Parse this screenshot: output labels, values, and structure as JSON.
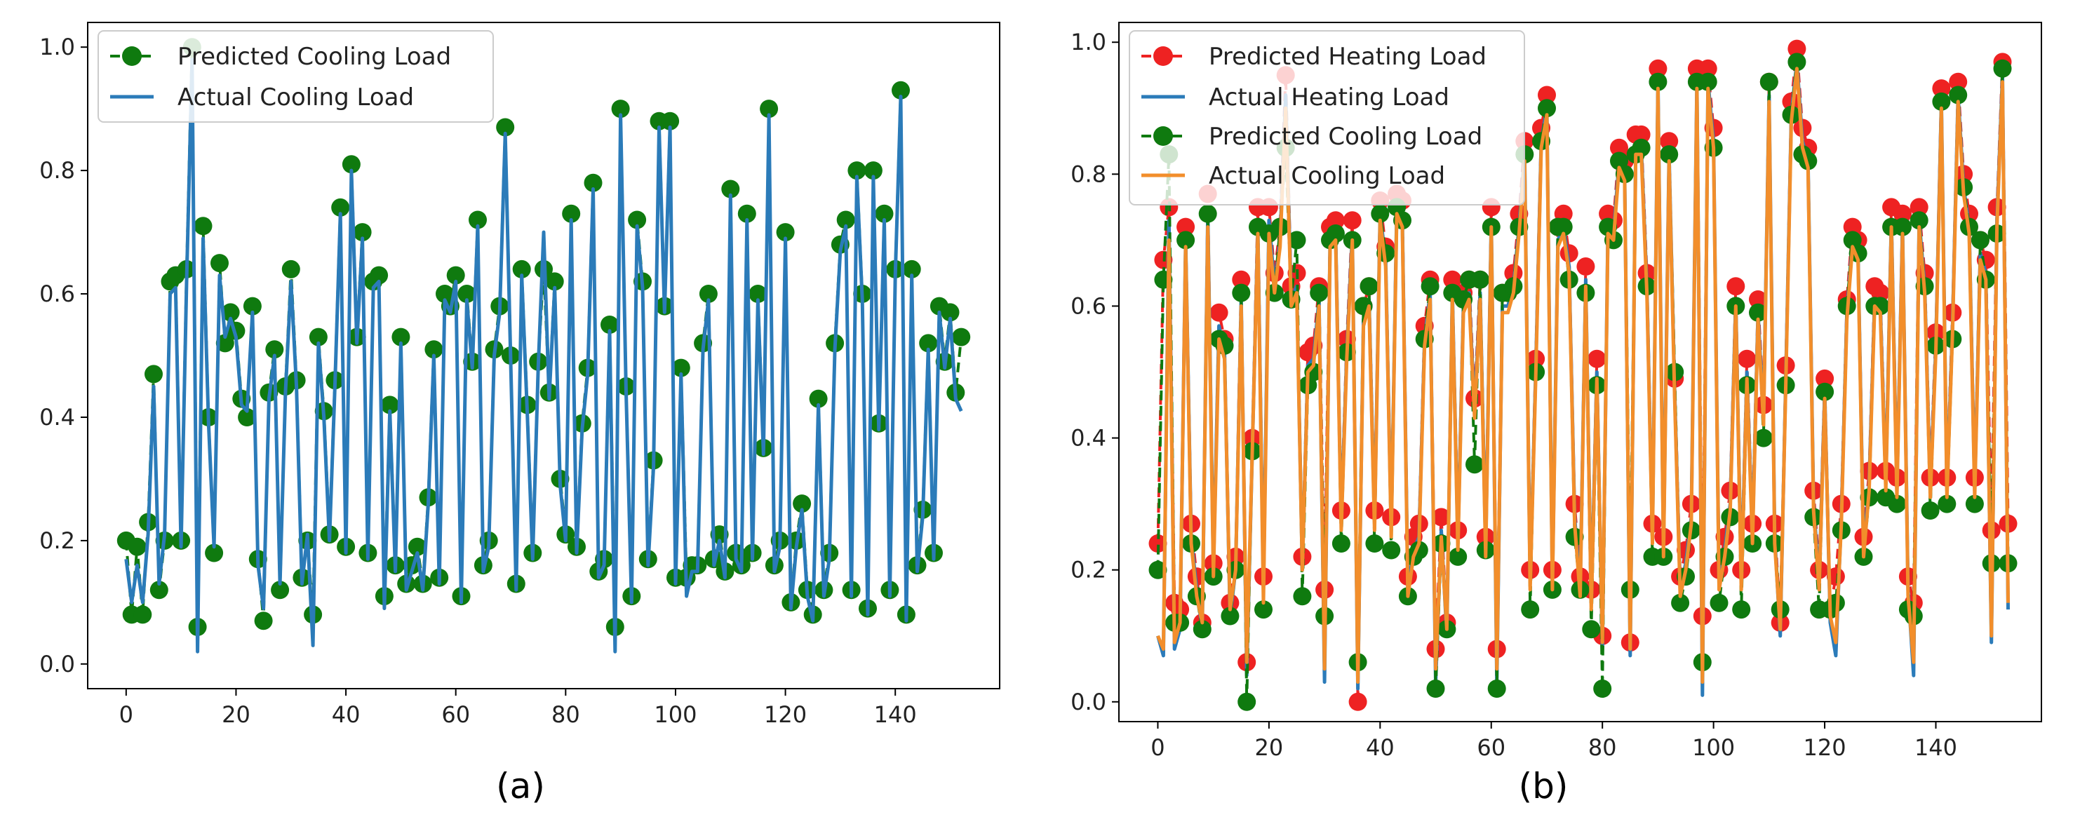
{
  "chart_data": [
    {
      "id": "a",
      "type": "line",
      "caption": "(a)",
      "xlim": [
        -7,
        159
      ],
      "ylim": [
        -0.04,
        1.04
      ],
      "xticks": [
        "0",
        "20",
        "40",
        "60",
        "80",
        "100",
        "120",
        "140"
      ],
      "xtick_values": [
        0,
        20,
        40,
        60,
        80,
        100,
        120,
        140
      ],
      "yticks": [
        "0.0",
        "0.2",
        "0.4",
        "0.6",
        "0.8",
        "1.0"
      ],
      "ytick_values": [
        0,
        0.2,
        0.4,
        0.6,
        0.8,
        1.0
      ],
      "legend": {
        "placement": "upper-left",
        "labels": [
          "Predicted Cooling Load",
          "Actual Cooling Load"
        ]
      },
      "series": [
        {
          "name": "Predicted Cooling Load",
          "style": "markers-dashed",
          "color": "#0f7a0f",
          "values": [
            0.2,
            0.08,
            0.19,
            0.08,
            0.23,
            0.47,
            0.12,
            0.2,
            0.62,
            0.63,
            0.2,
            0.64,
            1.0,
            0.06,
            0.71,
            0.4,
            0.18,
            0.65,
            0.52,
            0.57,
            0.54,
            0.43,
            0.4,
            0.58,
            0.17,
            0.07,
            0.44,
            0.51,
            0.12,
            0.45,
            0.64,
            0.46,
            0.14,
            0.2,
            0.08,
            0.53,
            0.41,
            0.21,
            0.46,
            0.74,
            0.19,
            0.81,
            0.53,
            0.7,
            0.18,
            0.62,
            0.63,
            0.11,
            0.42,
            0.16,
            0.53,
            0.13,
            0.16,
            0.19,
            0.13,
            0.27,
            0.51,
            0.14,
            0.6,
            0.58,
            0.63,
            0.11,
            0.6,
            0.49,
            0.72,
            0.16,
            0.2,
            0.51,
            0.58,
            0.87,
            0.5,
            0.13,
            0.64,
            0.42,
            0.18,
            0.49,
            0.64,
            0.44,
            0.62,
            0.3,
            0.21,
            0.73,
            0.19,
            0.39,
            0.48,
            0.78,
            0.15,
            0.17,
            0.55,
            0.06,
            0.9,
            0.45,
            0.11,
            0.72,
            0.62,
            0.17,
            0.33,
            0.88,
            0.58,
            0.88,
            0.14,
            0.48,
            0.14,
            0.16,
            0.16,
            0.52,
            0.6,
            0.17,
            0.21,
            0.15,
            0.77,
            0.18,
            0.16,
            0.73,
            0.18,
            0.6,
            0.35,
            0.9,
            0.16,
            0.2,
            0.7,
            0.1,
            0.2,
            0.26,
            0.12,
            0.08,
            0.43,
            0.12,
            0.18,
            0.52,
            0.68,
            0.72,
            0.12,
            0.8,
            0.6,
            0.09,
            0.8,
            0.39,
            0.73,
            0.12,
            0.64,
            0.93,
            0.08,
            0.64,
            0.16,
            0.25,
            0.52,
            0.18,
            0.58,
            0.49,
            0.57,
            0.44,
            0.53
          ]
        },
        {
          "name": "Actual Cooling Load",
          "style": "line",
          "color": "#2b7bb9",
          "values": [
            0.17,
            0.1,
            0.16,
            0.1,
            0.21,
            0.45,
            0.13,
            0.21,
            0.6,
            0.61,
            0.19,
            0.62,
            0.98,
            0.02,
            0.69,
            0.39,
            0.19,
            0.63,
            0.53,
            0.56,
            0.53,
            0.42,
            0.41,
            0.57,
            0.16,
            0.09,
            0.43,
            0.5,
            0.13,
            0.44,
            0.62,
            0.45,
            0.13,
            0.21,
            0.03,
            0.52,
            0.4,
            0.2,
            0.45,
            0.73,
            0.18,
            0.8,
            0.52,
            0.69,
            0.17,
            0.61,
            0.62,
            0.09,
            0.41,
            0.15,
            0.52,
            0.12,
            0.15,
            0.18,
            0.12,
            0.26,
            0.5,
            0.13,
            0.59,
            0.57,
            0.62,
            0.1,
            0.59,
            0.48,
            0.71,
            0.15,
            0.19,
            0.5,
            0.57,
            0.86,
            0.49,
            0.12,
            0.63,
            0.41,
            0.17,
            0.48,
            0.7,
            0.43,
            0.61,
            0.29,
            0.2,
            0.72,
            0.18,
            0.38,
            0.47,
            0.77,
            0.14,
            0.16,
            0.54,
            0.02,
            0.89,
            0.44,
            0.1,
            0.71,
            0.61,
            0.16,
            0.32,
            0.87,
            0.57,
            0.87,
            0.13,
            0.47,
            0.11,
            0.15,
            0.15,
            0.51,
            0.59,
            0.16,
            0.2,
            0.14,
            0.76,
            0.17,
            0.15,
            0.72,
            0.17,
            0.59,
            0.34,
            0.89,
            0.15,
            0.19,
            0.69,
            0.09,
            0.19,
            0.25,
            0.11,
            0.07,
            0.42,
            0.11,
            0.17,
            0.51,
            0.67,
            0.71,
            0.11,
            0.79,
            0.59,
            0.08,
            0.79,
            0.38,
            0.72,
            0.11,
            0.63,
            0.92,
            0.07,
            0.63,
            0.15,
            0.24,
            0.51,
            0.17,
            0.57,
            0.48,
            0.56,
            0.43,
            0.41
          ]
        }
      ]
    },
    {
      "id": "b",
      "type": "line",
      "caption": "(b)",
      "xlim": [
        -7,
        159
      ],
      "ylim": [
        -0.03,
        1.03
      ],
      "xticks": [
        "0",
        "20",
        "40",
        "60",
        "80",
        "100",
        "120",
        "140"
      ],
      "xtick_values": [
        0,
        20,
        40,
        60,
        80,
        100,
        120,
        140
      ],
      "yticks": [
        "0.0",
        "0.2",
        "0.4",
        "0.6",
        "0.8",
        "1.0"
      ],
      "ytick_values": [
        0,
        0.2,
        0.4,
        0.6,
        0.8,
        1.0
      ],
      "legend": {
        "placement": "upper-left",
        "labels": [
          "Predicted Heating Load",
          "Actual Heating Load",
          "Predicted Cooling Load",
          "Actual Cooling Load"
        ]
      },
      "series": [
        {
          "name": "Predicted Heating Load",
          "style": "markers-dashed",
          "color": "#ee2222",
          "values": [
            0.24,
            0.67,
            0.75,
            0.15,
            0.14,
            0.72,
            0.27,
            0.19,
            0.12,
            0.77,
            0.21,
            0.59,
            0.55,
            0.15,
            0.22,
            0.64,
            0.06,
            0.4,
            0.75,
            0.19,
            0.75,
            0.65,
            0.72,
            0.95,
            0.63,
            0.65,
            0.22,
            0.53,
            0.54,
            0.63,
            0.17,
            0.72,
            0.73,
            0.29,
            0.55,
            0.73,
            0.0,
            0.6,
            0.63,
            0.29,
            0.76,
            0.69,
            0.28,
            0.77,
            0.76,
            0.19,
            0.25,
            0.27,
            0.57,
            0.64,
            0.08,
            0.28,
            0.12,
            0.64,
            0.26,
            0.62,
            0.64,
            0.46,
            0.64,
            0.25,
            0.75,
            0.08,
            0.62,
            0.62,
            0.65,
            0.74,
            0.85,
            0.2,
            0.52,
            0.87,
            0.92,
            0.2,
            0.72,
            0.74,
            0.68,
            0.3,
            0.19,
            0.66,
            0.17,
            0.52,
            0.1,
            0.74,
            0.73,
            0.84,
            0.82,
            0.09,
            0.86,
            0.86,
            0.65,
            0.27,
            0.96,
            0.25,
            0.85,
            0.49,
            0.19,
            0.23,
            0.3,
            0.96,
            0.13,
            0.96,
            0.87,
            0.2,
            0.25,
            0.32,
            0.63,
            0.2,
            0.52,
            0.27,
            0.61,
            0.45,
            0.94,
            0.27,
            0.12,
            0.51,
            0.91,
            0.99,
            0.87,
            0.84,
            0.32,
            0.2,
            0.49,
            0.14,
            0.19,
            0.3,
            0.61,
            0.72,
            0.7,
            0.25,
            0.35,
            0.63,
            0.62,
            0.35,
            0.75,
            0.34,
            0.74,
            0.19,
            0.15,
            0.75,
            0.65,
            0.34,
            0.56,
            0.93,
            0.34,
            0.59,
            0.94,
            0.8,
            0.74,
            0.34,
            0.7,
            0.67,
            0.26,
            0.75,
            0.97,
            0.27
          ]
        },
        {
          "name": "Actual Heating Load",
          "style": "line",
          "color": "#2b7bb9",
          "values": [
            0.1,
            0.07,
            0.73,
            0.08,
            0.11,
            0.7,
            0.25,
            0.17,
            0.11,
            0.74,
            0.2,
            0.57,
            0.53,
            0.13,
            0.2,
            0.61,
            0.04,
            0.38,
            0.72,
            0.17,
            0.73,
            0.63,
            0.7,
            0.92,
            0.61,
            0.63,
            0.2,
            0.51,
            0.52,
            0.61,
            0.03,
            0.7,
            0.71,
            0.27,
            0.53,
            0.71,
            0.02,
            0.58,
            0.61,
            0.27,
            0.74,
            0.67,
            0.26,
            0.75,
            0.73,
            0.17,
            0.23,
            0.25,
            0.55,
            0.62,
            0.03,
            0.26,
            0.1,
            0.62,
            0.24,
            0.6,
            0.62,
            0.44,
            0.62,
            0.23,
            0.73,
            0.03,
            0.6,
            0.6,
            0.63,
            0.72,
            0.83,
            0.18,
            0.5,
            0.85,
            0.9,
            0.18,
            0.7,
            0.72,
            0.66,
            0.28,
            0.17,
            0.64,
            0.15,
            0.5,
            0.08,
            0.72,
            0.71,
            0.82,
            0.8,
            0.07,
            0.84,
            0.84,
            0.63,
            0.25,
            0.94,
            0.23,
            0.83,
            0.47,
            0.17,
            0.21,
            0.28,
            0.94,
            0.01,
            0.94,
            0.85,
            0.18,
            0.23,
            0.3,
            0.61,
            0.18,
            0.5,
            0.25,
            0.59,
            0.43,
            0.92,
            0.25,
            0.1,
            0.49,
            0.89,
            0.97,
            0.85,
            0.82,
            0.3,
            0.18,
            0.47,
            0.12,
            0.07,
            0.28,
            0.59,
            0.7,
            0.68,
            0.23,
            0.33,
            0.61,
            0.6,
            0.33,
            0.73,
            0.32,
            0.72,
            0.17,
            0.04,
            0.73,
            0.63,
            0.32,
            0.54,
            0.91,
            0.32,
            0.57,
            0.92,
            0.78,
            0.72,
            0.32,
            0.68,
            0.65,
            0.09,
            0.73,
            0.95,
            0.14
          ]
        },
        {
          "name": "Predicted Cooling Load",
          "style": "markers-dashed",
          "color": "#0f7a0f",
          "values": [
            0.2,
            0.64,
            0.83,
            0.12,
            0.12,
            0.7,
            0.24,
            0.16,
            0.11,
            0.74,
            0.19,
            0.55,
            0.54,
            0.13,
            0.2,
            0.62,
            0.0,
            0.38,
            0.72,
            0.14,
            0.71,
            0.62,
            0.72,
            0.84,
            0.61,
            0.7,
            0.16,
            0.48,
            0.5,
            0.62,
            0.13,
            0.7,
            0.71,
            0.24,
            0.53,
            0.7,
            0.06,
            0.6,
            0.63,
            0.24,
            0.74,
            0.68,
            0.23,
            0.75,
            0.73,
            0.16,
            0.22,
            0.23,
            0.55,
            0.63,
            0.02,
            0.24,
            0.11,
            0.62,
            0.22,
            0.61,
            0.64,
            0.36,
            0.64,
            0.23,
            0.72,
            0.02,
            0.62,
            0.62,
            0.63,
            0.72,
            0.83,
            0.14,
            0.5,
            0.85,
            0.9,
            0.17,
            0.72,
            0.72,
            0.64,
            0.25,
            0.17,
            0.62,
            0.11,
            0.48,
            0.02,
            0.72,
            0.7,
            0.82,
            0.8,
            0.17,
            0.83,
            0.84,
            0.63,
            0.22,
            0.94,
            0.22,
            0.83,
            0.5,
            0.15,
            0.19,
            0.26,
            0.94,
            0.06,
            0.94,
            0.84,
            0.15,
            0.22,
            0.28,
            0.6,
            0.14,
            0.48,
            0.24,
            0.59,
            0.4,
            0.94,
            0.24,
            0.14,
            0.48,
            0.89,
            0.97,
            0.83,
            0.82,
            0.28,
            0.14,
            0.47,
            0.14,
            0.15,
            0.26,
            0.6,
            0.7,
            0.68,
            0.22,
            0.31,
            0.6,
            0.6,
            0.31,
            0.72,
            0.3,
            0.72,
            0.14,
            0.13,
            0.73,
            0.63,
            0.29,
            0.54,
            0.91,
            0.3,
            0.55,
            0.92,
            0.78,
            0.72,
            0.3,
            0.7,
            0.64,
            0.21,
            0.71,
            0.96,
            0.21
          ]
        },
        {
          "name": "Actual Cooling Load",
          "style": "line",
          "color": "#f28e2b",
          "values": [
            0.1,
            0.08,
            0.7,
            0.09,
            0.12,
            0.69,
            0.24,
            0.16,
            0.12,
            0.72,
            0.19,
            0.55,
            0.52,
            0.14,
            0.2,
            0.6,
            0.06,
            0.38,
            0.71,
            0.15,
            0.71,
            0.62,
            0.69,
            0.9,
            0.6,
            0.62,
            0.2,
            0.5,
            0.51,
            0.6,
            0.05,
            0.69,
            0.7,
            0.26,
            0.52,
            0.7,
            0.03,
            0.57,
            0.6,
            0.26,
            0.73,
            0.66,
            0.25,
            0.74,
            0.72,
            0.16,
            0.22,
            0.24,
            0.54,
            0.61,
            0.05,
            0.25,
            0.11,
            0.61,
            0.23,
            0.59,
            0.61,
            0.43,
            0.61,
            0.22,
            0.72,
            0.05,
            0.59,
            0.59,
            0.62,
            0.71,
            0.82,
            0.17,
            0.49,
            0.84,
            0.89,
            0.17,
            0.69,
            0.71,
            0.65,
            0.27,
            0.16,
            0.63,
            0.14,
            0.49,
            0.09,
            0.71,
            0.7,
            0.81,
            0.79,
            0.08,
            0.83,
            0.83,
            0.62,
            0.24,
            0.93,
            0.22,
            0.82,
            0.46,
            0.16,
            0.2,
            0.27,
            0.93,
            0.03,
            0.93,
            0.84,
            0.17,
            0.22,
            0.29,
            0.6,
            0.17,
            0.49,
            0.24,
            0.58,
            0.42,
            0.91,
            0.24,
            0.11,
            0.48,
            0.88,
            0.96,
            0.84,
            0.81,
            0.29,
            0.17,
            0.46,
            0.13,
            0.09,
            0.27,
            0.58,
            0.69,
            0.67,
            0.22,
            0.32,
            0.6,
            0.59,
            0.32,
            0.72,
            0.31,
            0.71,
            0.16,
            0.06,
            0.72,
            0.62,
            0.31,
            0.53,
            0.9,
            0.31,
            0.56,
            0.91,
            0.77,
            0.71,
            0.31,
            0.67,
            0.64,
            0.1,
            0.72,
            0.94,
            0.15
          ]
        }
      ]
    }
  ]
}
